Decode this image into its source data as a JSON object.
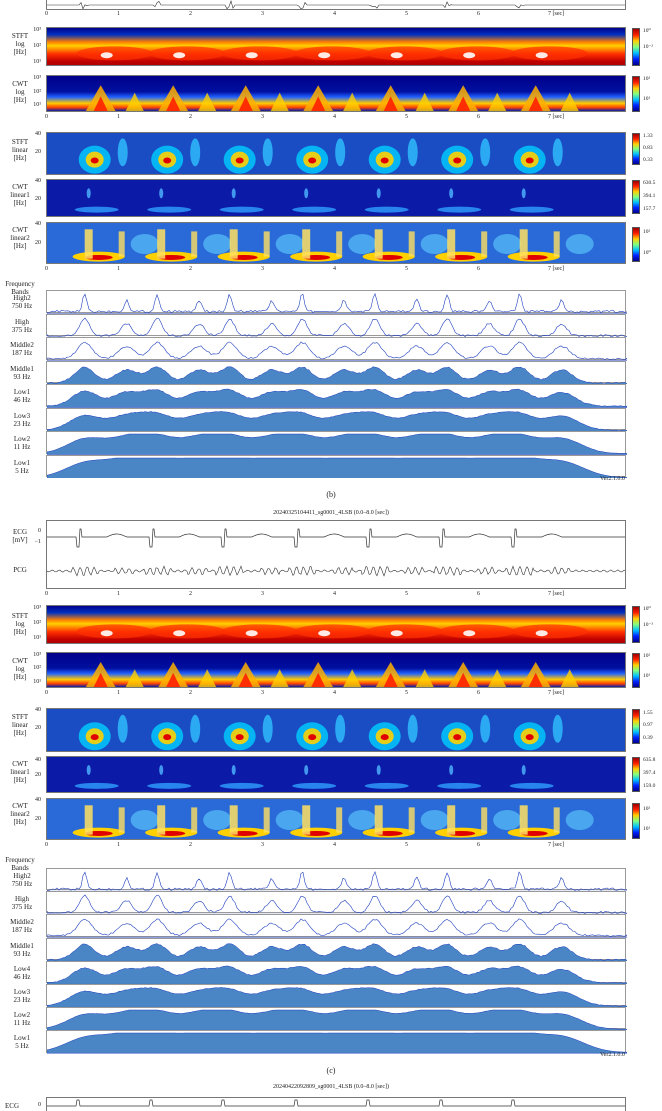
{
  "x_ticks": [
    "0",
    "1",
    "2",
    "3",
    "4",
    "5",
    "6",
    "7 [sec]"
  ],
  "x_tick_digits": [
    0,
    1,
    2,
    3,
    4,
    5,
    6
  ],
  "x_tick_last": "7 [sec]",
  "labels": {
    "stft_log": [
      "STFT",
      "log",
      "[Hz]"
    ],
    "cwt_log": [
      "CWT",
      "log",
      "[Hz]"
    ],
    "stft_lin": [
      "STFT",
      "linear",
      "[Hz]"
    ],
    "cwt_lin1": [
      "CWT",
      "linear1",
      "[Hz]"
    ],
    "cwt_lin2": [
      "CWT",
      "linear2",
      "[Hz]"
    ],
    "ecg": [
      "ECG",
      "[mV]"
    ],
    "pcg": "PCG",
    "freq_bands": [
      "Frequency",
      "Bands"
    ]
  },
  "bands": [
    {
      "name": "High2",
      "hz": "750 Hz"
    },
    {
      "name": "High",
      "hz": "375 Hz"
    },
    {
      "name": "Middle2",
      "hz": "187 Hz"
    },
    {
      "name": "Middle1",
      "hz": "93 Hz"
    },
    {
      "name": "Low4",
      "hz": "46 Hz"
    },
    {
      "name": "Low3",
      "hz": "23 Hz"
    },
    {
      "name": "Low2",
      "hz": "11 Hz"
    },
    {
      "name": "Low1",
      "hz": "5 Hz"
    }
  ],
  "bands_b_low4_label": "Low1",
  "yticks": {
    "log": [
      "10³",
      "10²",
      "10¹"
    ],
    "lin": [
      "40",
      "20"
    ],
    "ecg": [
      "0",
      "−1"
    ]
  },
  "fig_b": {
    "caption": "(b)",
    "version": "Ver2.1.0.0",
    "cbar_stft_log": [
      "10⁰",
      "10⁻²"
    ],
    "cbar_cwt_log": [
      "10²",
      "10¹"
    ],
    "cbar_stft_lin": [
      "1.33",
      "0.83",
      "0.33"
    ],
    "cbar_cwt_lin1": [
      "630.5",
      "394.1",
      "157.7"
    ],
    "cbar_cwt_lin2": [
      "10²",
      "10⁰"
    ]
  },
  "fig_c": {
    "title": "20240325104411_sg0001_4LSB (0.0–8.0 [sec])",
    "caption": "(c)",
    "version": "Ver2.1.0.0",
    "cbar_stft_log": [
      "10⁰",
      "10⁻²"
    ],
    "cbar_cwt_log": [
      "10²",
      "10¹"
    ],
    "cbar_stft_lin": [
      "1.55",
      "0.97",
      "0.39"
    ],
    "cbar_cwt_lin1": [
      "635.8",
      "397.4",
      "159.0"
    ],
    "cbar_cwt_lin2": [
      "10²",
      "10¹"
    ]
  },
  "fig_d": {
    "title": "20240422092809_sg0001_4LSB (0.0–8.0 [sec])"
  }
}
